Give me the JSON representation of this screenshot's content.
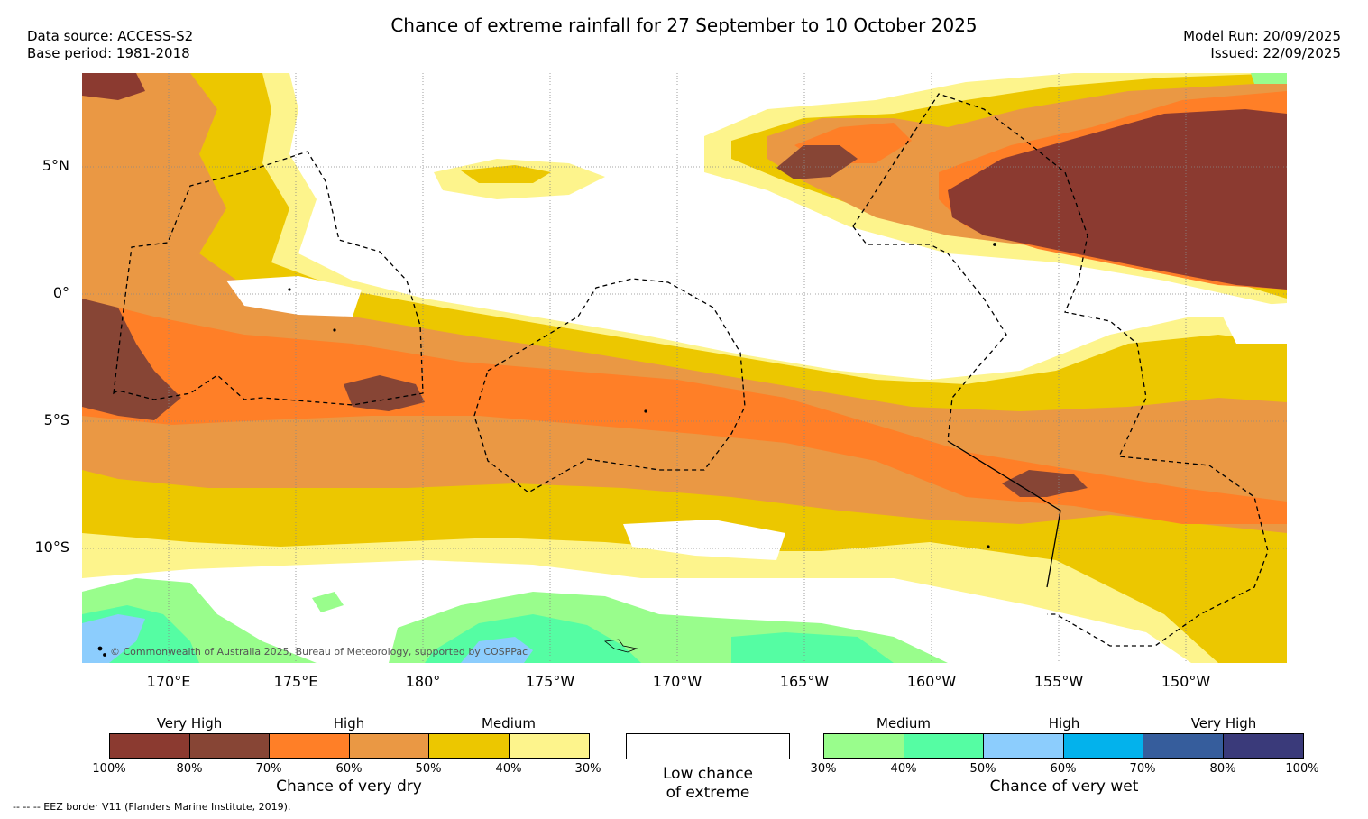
{
  "header": {
    "title": "Chance of extreme rainfall for 27 September to 10 October 2025",
    "data_source": "Data source: ACCESS-S2",
    "base_period": "Base period: 1981-2018",
    "model_run": "Model Run: 20/09/2025",
    "issued": "Issued: 22/09/2025"
  },
  "map": {
    "lat_labels": [
      "5°N",
      "0°",
      "5°S",
      "10°S"
    ],
    "lon_labels": [
      "170°E",
      "175°E",
      "180°",
      "175°W",
      "170°W",
      "165°W",
      "160°W",
      "155°W",
      "150°W"
    ],
    "copyright": "© Commonwealth of Australia 2025, Bureau of Meteorology, supported by COSPPac"
  },
  "legend_dry": {
    "title": "Chance of very dry",
    "categories": [
      "Very High",
      "High",
      "Medium"
    ],
    "ticks": [
      "100%",
      "80%",
      "70%",
      "60%",
      "50%",
      "40%",
      "30%"
    ],
    "colors": [
      "#8b3a30",
      "#874535",
      "#ff7f27",
      "#ea9844",
      "#ecc700",
      "#fdf48c"
    ]
  },
  "legend_none": {
    "line1": "Low chance",
    "line2": "of extreme"
  },
  "legend_wet": {
    "title": "Chance of very wet",
    "categories": [
      "Medium",
      "High",
      "Very High"
    ],
    "ticks": [
      "30%",
      "40%",
      "50%",
      "60%",
      "70%",
      "80%",
      "100%"
    ],
    "colors": [
      "#99fd8c",
      "#55fda3",
      "#8ccdfd",
      "#03b2ec",
      "#365d9c",
      "#3a3a7a"
    ]
  },
  "footer": {
    "eez_note": "--  --  -- EEZ border V11 (Flanders Marine Institute, 2019)."
  }
}
